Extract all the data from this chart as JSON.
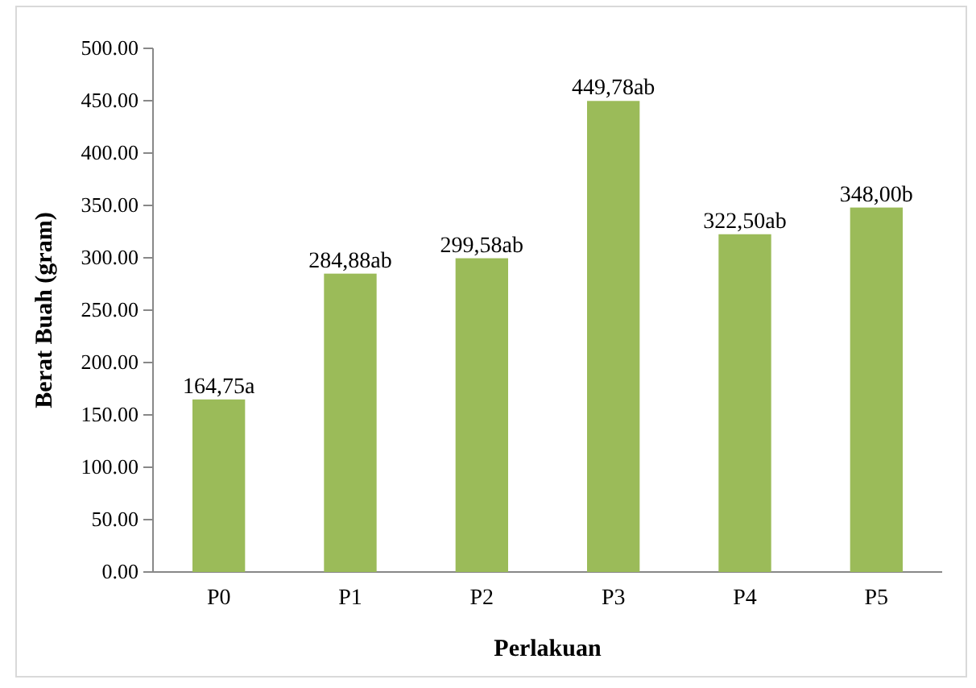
{
  "chart_data": {
    "type": "bar",
    "xlabel": "Perlakuan",
    "ylabel": "Berat Buah (gram)",
    "categories": [
      "P0",
      "P1",
      "P2",
      "P3",
      "P4",
      "P5"
    ],
    "values": [
      164.75,
      284.88,
      299.58,
      449.78,
      322.5,
      348.0
    ],
    "value_labels": [
      "164,75a",
      "284,88ab",
      "299,58ab",
      "449,78ab",
      "322,50ab",
      "348,00b"
    ],
    "color": "#9bbb59",
    "ylim": [
      0,
      500
    ],
    "yticks": [
      {
        "value": 0,
        "label": "0.00"
      },
      {
        "value": 50,
        "label": "50.00"
      },
      {
        "value": 100,
        "label": "100.00"
      },
      {
        "value": 150,
        "label": "150.00"
      },
      {
        "value": 200,
        "label": "200.00"
      },
      {
        "value": 250,
        "label": "250.00"
      },
      {
        "value": 300,
        "label": "300.00"
      },
      {
        "value": 350,
        "label": "350.00"
      },
      {
        "value": 400,
        "label": "400.00"
      },
      {
        "value": 450,
        "label": "450.00"
      },
      {
        "value": 500,
        "label": "500.00"
      }
    ],
    "grid": false
  }
}
